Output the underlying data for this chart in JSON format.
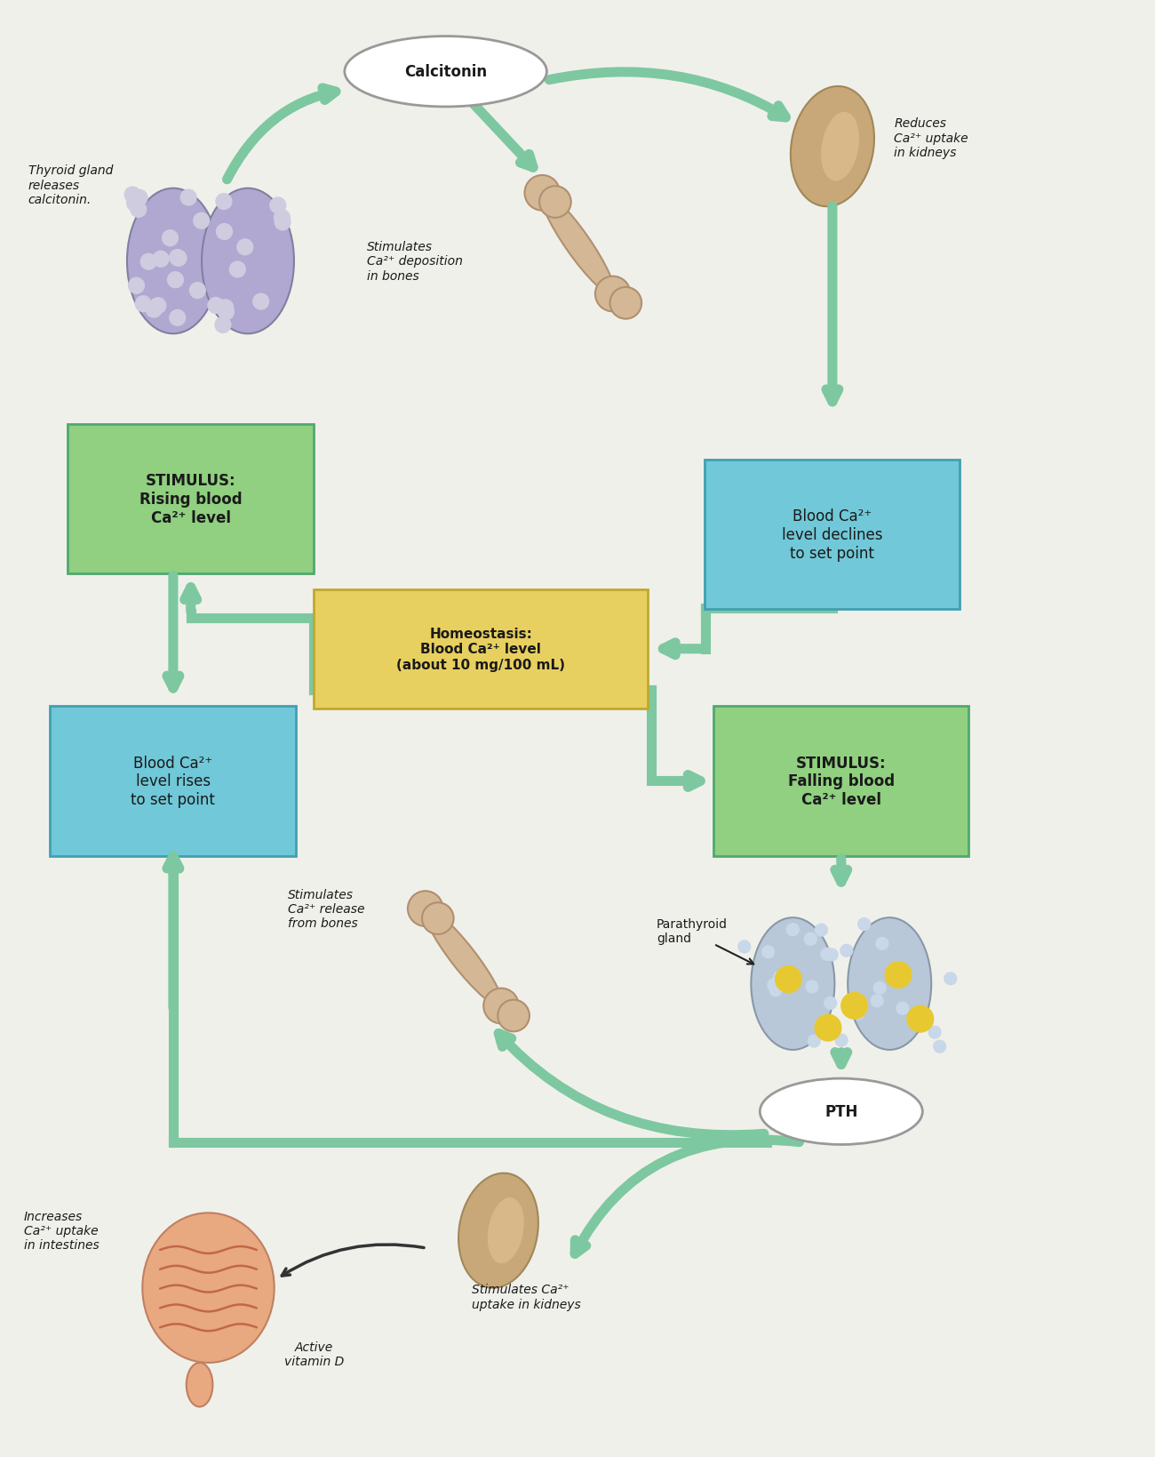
{
  "bg_color": "#f0f0eb",
  "arrow_color": "#7dc8a0",
  "arrow_lw": 8,
  "box_green_color": "#90d080",
  "box_cyan_color": "#70c8d8",
  "box_yellow_color": "#e8d060",
  "box_green_edge": "#50a870",
  "box_cyan_edge": "#40a0b0",
  "box_yellow_edge": "#c0a830",
  "text_dark": "#1a1a1a",
  "calcitonin_label": "Calcitonin",
  "pth_label": "PTH",
  "stimulus_rising_label": "STIMULUS:\nRising blood\nCa²⁺ level",
  "stimulus_falling_label": "STIMULUS:\nFalling blood\nCa²⁺ level",
  "homeostasis_label": "Homeostasis:\nBlood Ca²⁺ level\n(about 10 mg/100 mL)",
  "blood_declines_label": "Blood Ca²⁺\nlevel declines\nto set point",
  "blood_rises_label": "Blood Ca²⁺\nlevel rises\nto set point",
  "thyroid_label": "Thyroid gland\nreleases\ncalcitonin.",
  "reduces_kidneys_label": "Reduces\nCa²⁺ uptake\nin kidneys",
  "stimulates_deposition_label": "Stimulates\nCa²⁺ deposition\nin bones",
  "stimulates_release_label": "Stimulates\nCa²⁺ release\nfrom bones",
  "stimulates_kidneys_label": "Stimulates Ca²⁺\nuptake in kidneys",
  "increases_intestines_label": "Increases\nCa²⁺ uptake\nin intestines",
  "active_vit_d_label": "Active\nvitamin D",
  "parathyroid_label": "Parathyroid\ngland"
}
